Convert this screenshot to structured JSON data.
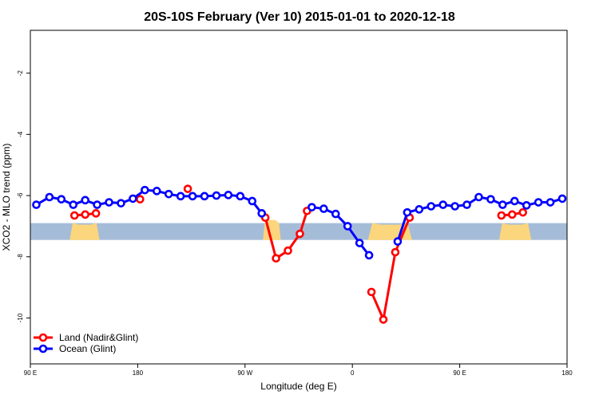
{
  "chart_data": {
    "type": "line",
    "title": "20S-10S February (Ver 10)   2015-01-01 to 2020-12-18",
    "xlabel": "Longitude (deg E)",
    "ylabel": "XCO2 - MLO trend (ppm)",
    "x_ticks": [
      {
        "value": 0,
        "label": "90 E"
      },
      {
        "value": 90,
        "label": "180"
      },
      {
        "value": 180,
        "label": "90 W"
      },
      {
        "value": 270,
        "label": "0"
      },
      {
        "value": 360,
        "label": "90 E"
      },
      {
        "value": 450,
        "label": "180"
      }
    ],
    "y_ticks": [
      {
        "value": -2,
        "label": "-2"
      },
      {
        "value": -4,
        "label": "-4"
      },
      {
        "value": -6,
        "label": "-6"
      },
      {
        "value": -8,
        "label": "-8"
      },
      {
        "value": -10,
        "label": "-10"
      }
    ],
    "xlim": [
      0,
      450
    ],
    "ylim": [
      -11.5,
      -0.6
    ],
    "land_band": {
      "ymin": -7.45,
      "ymax": -6.9,
      "ocean_color": "#a5bcd9",
      "land_color": "#fcd67c",
      "land_segments": [
        [
          33,
          58,
          -6.95
        ],
        [
          195,
          210,
          -6.8
        ],
        [
          283,
          320,
          -6.95
        ],
        [
          393,
          420,
          -6.95
        ]
      ]
    },
    "series": [
      {
        "name": "Land (Nadir&Glint)",
        "color": "#ff0000",
        "segments": [
          [
            [
              37,
              -6.65
            ],
            [
              46,
              -6.62
            ],
            [
              55,
              -6.58
            ]
          ],
          [
            [
              92,
              -6.12
            ]
          ],
          [
            [
              132,
              -5.78
            ]
          ],
          [
            [
              197,
              -6.72
            ],
            [
              206,
              -8.05
            ],
            [
              216,
              -7.8
            ],
            [
              226,
              -7.25
            ],
            [
              232,
              -6.5
            ]
          ],
          [
            [
              286,
              -9.15
            ],
            [
              296,
              -10.05
            ],
            [
              306,
              -7.85
            ],
            [
              318,
              -6.72
            ]
          ],
          [
            [
              395,
              -6.65
            ],
            [
              404,
              -6.62
            ],
            [
              413,
              -6.55
            ]
          ]
        ]
      },
      {
        "name": "Ocean (Glint)",
        "color": "#0000ff",
        "segments": [
          [
            [
              5,
              -6.3
            ],
            [
              16,
              -6.05
            ],
            [
              26,
              -6.12
            ],
            [
              36,
              -6.3
            ],
            [
              46,
              -6.15
            ],
            [
              56,
              -6.3
            ],
            [
              66,
              -6.22
            ],
            [
              76,
              -6.25
            ],
            [
              86,
              -6.1
            ],
            [
              96,
              -5.82
            ],
            [
              106,
              -5.85
            ],
            [
              116,
              -5.95
            ],
            [
              126,
              -6.02
            ],
            [
              136,
              -6.02
            ],
            [
              146,
              -6.02
            ],
            [
              156,
              -6.0
            ],
            [
              166,
              -5.98
            ],
            [
              176,
              -6.02
            ],
            [
              186,
              -6.18
            ],
            [
              194,
              -6.58
            ]
          ],
          [
            [
              236,
              -6.38
            ],
            [
              246,
              -6.43
            ],
            [
              256,
              -6.6
            ],
            [
              266,
              -7.0
            ],
            [
              276,
              -7.55
            ],
            [
              284,
              -7.95
            ]
          ],
          [
            [
              308,
              -7.5
            ],
            [
              316,
              -6.55
            ],
            [
              326,
              -6.45
            ],
            [
              336,
              -6.35
            ],
            [
              346,
              -6.3
            ],
            [
              356,
              -6.35
            ],
            [
              366,
              -6.3
            ],
            [
              376,
              -6.05
            ],
            [
              386,
              -6.12
            ],
            [
              396,
              -6.3
            ],
            [
              406,
              -6.18
            ],
            [
              416,
              -6.32
            ],
            [
              426,
              -6.22
            ],
            [
              436,
              -6.22
            ],
            [
              446,
              -6.1
            ]
          ]
        ]
      }
    ],
    "legend": {
      "position": "bottom-left",
      "entries": [
        "Land (Nadir&Glint)",
        "Ocean (Glint)"
      ]
    },
    "grid": false
  }
}
